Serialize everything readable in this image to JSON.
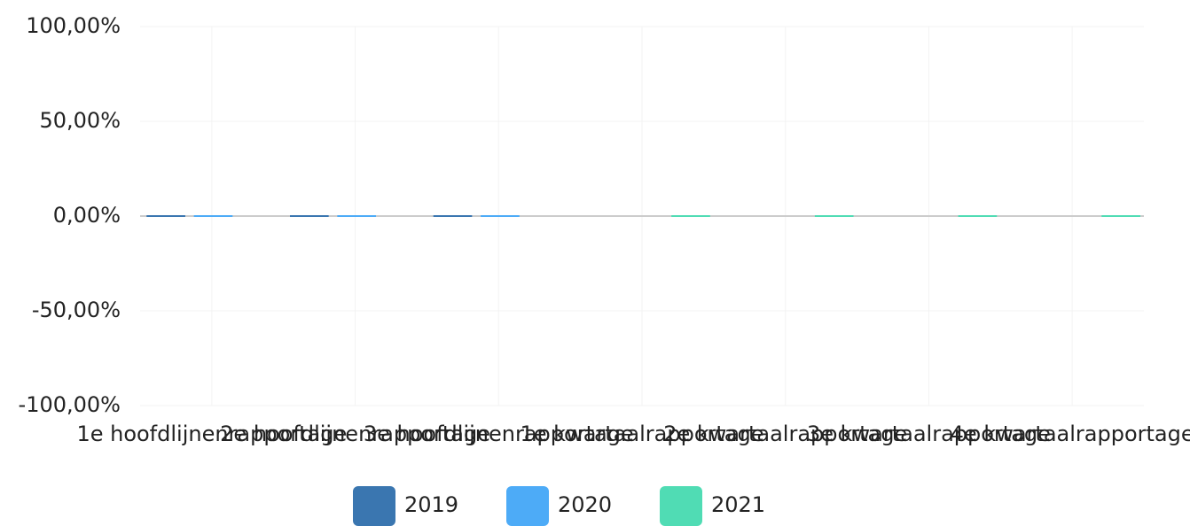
{
  "chart_data": {
    "type": "bar",
    "categories": [
      "1e hoofdlijnenrapportage",
      "2e hoofdlijnenrapportage",
      "3e hoofdlijnenrapportage",
      "1e kwartaalrapportage",
      "2e kwartaalrapportage",
      "3e kwartaalrapportage",
      "4e kwartaalrapportage"
    ],
    "series": [
      {
        "name": "2019",
        "color": "#3a76b0",
        "values": [
          0,
          0,
          0,
          null,
          null,
          null,
          null
        ]
      },
      {
        "name": "2020",
        "color": "#4dabf7",
        "values": [
          0,
          0,
          0,
          null,
          null,
          null,
          null
        ]
      },
      {
        "name": "2021",
        "color": "#50dcb4",
        "values": [
          null,
          null,
          null,
          0,
          0,
          0,
          0
        ]
      }
    ],
    "ylim": [
      -100,
      100
    ],
    "yticks": [
      {
        "value": -100,
        "label": "-100,00%"
      },
      {
        "value": -50,
        "label": "-50,00%"
      },
      {
        "value": 0,
        "label": "0,00%"
      },
      {
        "value": 50,
        "label": "50,00%"
      },
      {
        "value": 100,
        "label": "100,00%"
      }
    ],
    "grid": true,
    "legend": "bottom"
  }
}
